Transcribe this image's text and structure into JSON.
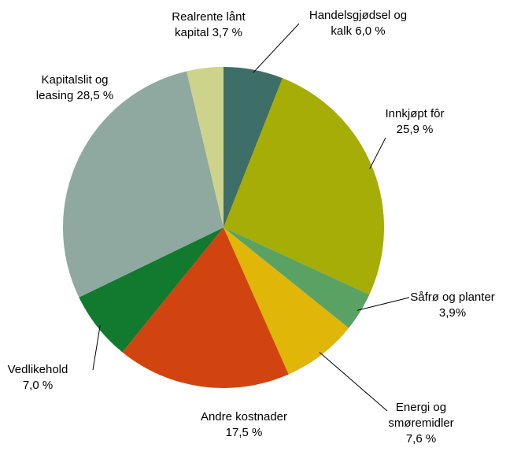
{
  "chart_data": {
    "type": "pie",
    "categories": [
      "Handelsgjødsel og kalk",
      "Innkjøpt fôr",
      "Såfrø og planter",
      "Energi og smøremidler",
      "Andre kostnader",
      "Vedlikehold",
      "Kapitalslit og leasing",
      "Realrente lånt kapital"
    ],
    "values": [
      6.0,
      25.9,
      3.9,
      7.6,
      17.5,
      7.0,
      28.5,
      3.7
    ],
    "value_labels": [
      "6,0 %",
      "25,9 %",
      "3,9%",
      "7,6 %",
      "17,5 %",
      "7,0 %",
      "28,5 %",
      "3,7 %"
    ],
    "colors": [
      "#3d6e67",
      "#a5ad06",
      "#5aa264",
      "#e0b608",
      "#d2440f",
      "#127a2e",
      "#8fa8a0",
      "#cdd38a"
    ]
  }
}
